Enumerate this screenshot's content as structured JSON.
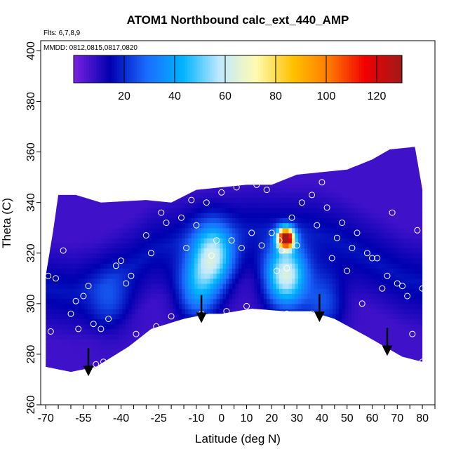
{
  "chart_data": {
    "type": "heatmap",
    "title": "ATOM1 Northbound calc_ext_440_AMP",
    "annotations": {
      "flights": "Flts: 6,7,8,9",
      "dates": "MMDD: 0812,0815,0817,0820"
    },
    "xlabel": "Latitude (deg N)",
    "ylabel": "Theta (C)",
    "xlim": [
      -72,
      85
    ],
    "ylim": [
      260,
      404
    ],
    "x_tick_labels": [
      "-70",
      "-55",
      "-40",
      "-25",
      "-10",
      "0",
      "10",
      "20",
      "30",
      "40",
      "50",
      "60",
      "70",
      "80"
    ],
    "y_tick_labels": [
      "260",
      "280",
      "300",
      "320",
      "340",
      "360",
      "380",
      "400"
    ],
    "colorbar": {
      "range": [
        0,
        130
      ],
      "tick_labels": [
        "20",
        "40",
        "60",
        "80",
        "100",
        "120"
      ],
      "colors": [
        "#7a22e0",
        "#0000b0",
        "#1a6cff",
        "#00b4ff",
        "#bfe9ff",
        "#fffbb0",
        "#ffc200",
        "#ff7a00",
        "#f00000",
        "#a01a1a"
      ]
    },
    "top_boundary": [
      [
        -70,
        311
      ],
      [
        -67,
        329
      ],
      [
        -65,
        343
      ],
      [
        -58,
        343
      ],
      [
        -48,
        340
      ],
      [
        -30,
        341
      ],
      [
        -20,
        340
      ],
      [
        -10,
        345
      ],
      [
        0,
        346
      ],
      [
        10,
        347
      ],
      [
        20,
        347
      ],
      [
        30,
        351
      ],
      [
        40,
        352
      ],
      [
        50,
        353
      ],
      [
        60,
        357
      ],
      [
        67,
        361
      ],
      [
        77,
        362
      ],
      [
        80,
        345
      ],
      [
        80,
        335
      ]
    ],
    "bottom_boundary": [
      [
        -70,
        275
      ],
      [
        -60,
        273
      ],
      [
        -50,
        275
      ],
      [
        -37,
        283
      ],
      [
        -28,
        290
      ],
      [
        -15,
        294
      ],
      [
        -5,
        296
      ],
      [
        0,
        296
      ],
      [
        12,
        298
      ],
      [
        25,
        297
      ],
      [
        35,
        297
      ],
      [
        45,
        294
      ],
      [
        58,
        287
      ],
      [
        72,
        279
      ],
      [
        80,
        277
      ]
    ],
    "enhancements": [
      {
        "lat": 25,
        "theta": 325,
        "value": 125
      },
      {
        "lat": 25,
        "theta": 310,
        "value": 55
      },
      {
        "lat": -4,
        "theta": 318,
        "value": 45
      },
      {
        "lat": -10,
        "theta": 305,
        "value": 30
      },
      {
        "lat": -45,
        "theta": 300,
        "value": 12
      },
      {
        "lat": 40,
        "theta": 300,
        "value": 18
      }
    ],
    "flight_track_points": [
      [
        -69,
        311
      ],
      [
        -68,
        289
      ],
      [
        -66,
        310
      ],
      [
        -63,
        321
      ],
      [
        -60,
        296
      ],
      [
        -58,
        301
      ],
      [
        -57,
        290
      ],
      [
        -55,
        303
      ],
      [
        -53,
        307
      ],
      [
        -51,
        292
      ],
      [
        -50,
        276
      ],
      [
        -48,
        290
      ],
      [
        -47,
        277
      ],
      [
        -45,
        294
      ],
      [
        -42,
        315
      ],
      [
        -40,
        317
      ],
      [
        -38,
        308
      ],
      [
        -36,
        311
      ],
      [
        -34,
        288
      ],
      [
        -30,
        327
      ],
      [
        -28,
        320
      ],
      [
        -26,
        291
      ],
      [
        -24,
        336
      ],
      [
        -22,
        332
      ],
      [
        -20,
        295
      ],
      [
        -18,
        343
      ],
      [
        -16,
        334
      ],
      [
        -14,
        322
      ],
      [
        -12,
        341
      ],
      [
        -10,
        331
      ],
      [
        -8,
        296
      ],
      [
        -6,
        340
      ],
      [
        -4,
        319
      ],
      [
        -2,
        325
      ],
      [
        0,
        344
      ],
      [
        2,
        297
      ],
      [
        4,
        325
      ],
      [
        6,
        346
      ],
      [
        8,
        322
      ],
      [
        10,
        299
      ],
      [
        12,
        328
      ],
      [
        14,
        347
      ],
      [
        16,
        323
      ],
      [
        18,
        345
      ],
      [
        20,
        328
      ],
      [
        22,
        313
      ],
      [
        23,
        325
      ],
      [
        24,
        321
      ],
      [
        26,
        296
      ],
      [
        26,
        314
      ],
      [
        28,
        334
      ],
      [
        30,
        323
      ],
      [
        32,
        340
      ],
      [
        34,
        294
      ],
      [
        36,
        296
      ],
      [
        36,
        343
      ],
      [
        38,
        331
      ],
      [
        40,
        348
      ],
      [
        42,
        338
      ],
      [
        44,
        318
      ],
      [
        46,
        326
      ],
      [
        48,
        332
      ],
      [
        50,
        313
      ],
      [
        52,
        322
      ],
      [
        54,
        328
      ],
      [
        56,
        300
      ],
      [
        58,
        320
      ],
      [
        60,
        318
      ],
      [
        62,
        318
      ],
      [
        64,
        306
      ],
      [
        66,
        311
      ],
      [
        68,
        336
      ],
      [
        70,
        308
      ],
      [
        72,
        307
      ],
      [
        74,
        303
      ],
      [
        76,
        288
      ],
      [
        78,
        329
      ],
      [
        80,
        306
      ],
      [
        80,
        277
      ]
    ],
    "arrows_lat": [
      -53,
      -8,
      39,
      66
    ],
    "grid": false,
    "legend": "none"
  }
}
